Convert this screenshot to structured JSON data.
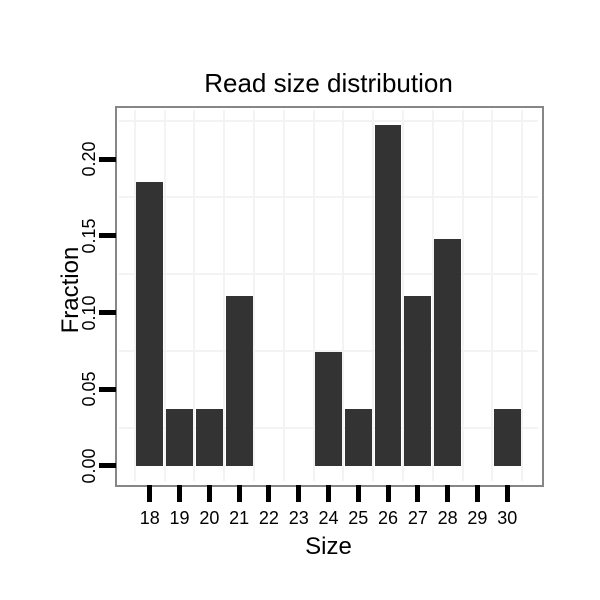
{
  "chart_data": {
    "type": "bar",
    "title": "Read size distribution",
    "xlabel": "Size",
    "ylabel": "Fraction",
    "categories": [
      18,
      19,
      20,
      21,
      22,
      23,
      24,
      25,
      26,
      27,
      28,
      29,
      30
    ],
    "values": [
      0.1852,
      0.037,
      0.037,
      0.1111,
      0,
      0,
      0.0741,
      0.037,
      0.2222,
      0.1111,
      0.1481,
      0,
      0.037
    ],
    "x_tick_labels": [
      "18",
      "19",
      "20",
      "21",
      "22",
      "23",
      "24",
      "25",
      "26",
      "27",
      "28",
      "29",
      "30"
    ],
    "y_tick_values": [
      0,
      0.05,
      0.1,
      0.15,
      0.2
    ],
    "y_tick_labels": [
      "0.00",
      "0.05",
      "0.10",
      "0.15",
      "0.20"
    ],
    "xlim": [
      16.9,
      31.1
    ],
    "ylim": [
      -0.0111,
      0.2333
    ],
    "bar_width": 0.9,
    "grid": {
      "minor_x": [
        17.5,
        18.5,
        19.5,
        20.5,
        21.5,
        22.5,
        23.5,
        24.5,
        25.5,
        26.5,
        27.5,
        28.5,
        29.5,
        30.5
      ],
      "minor_y": [
        0.025,
        0.075,
        0.125,
        0.175,
        0.225
      ]
    },
    "colors": {
      "bar": "#333333",
      "grid": "#f3f3f3",
      "panel_border": "#868686",
      "tick": "#000000",
      "text": "#000000",
      "background": "#ffffff"
    }
  }
}
